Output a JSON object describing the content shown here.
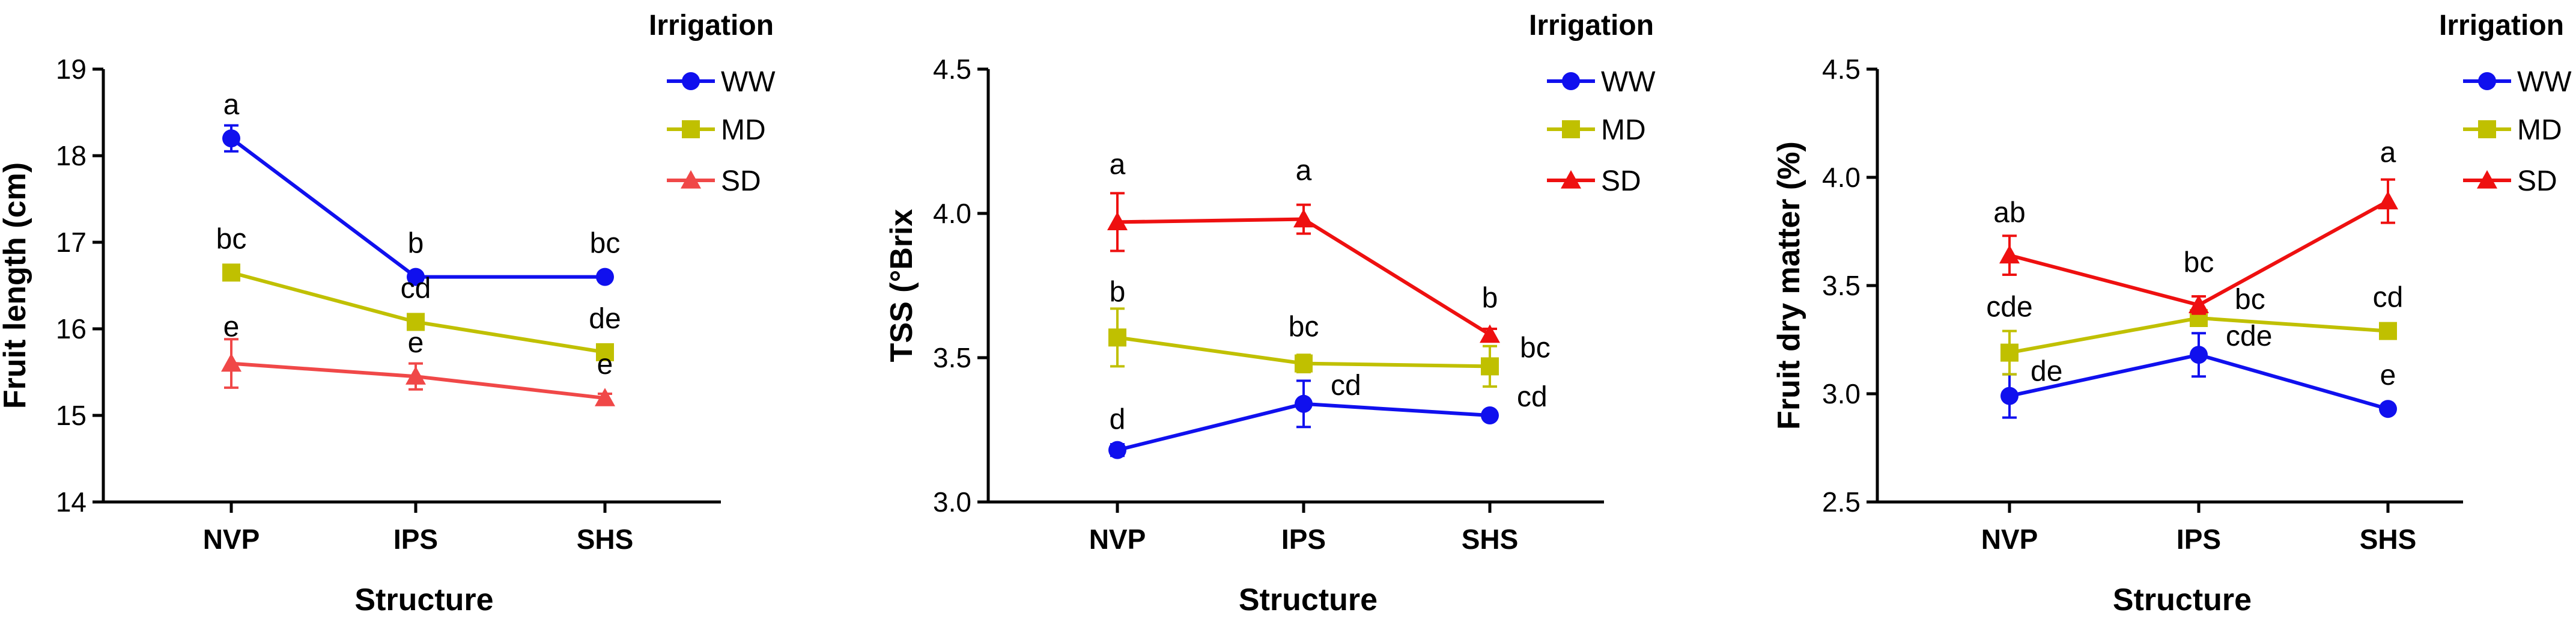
{
  "chart_data": [
    {
      "type": "line",
      "xlabel": "Structure",
      "ylabel": "Fruit length (cm)",
      "categories": [
        "NVP",
        "IPS",
        "SHS"
      ],
      "ylim": [
        14,
        19
      ],
      "yticks": [
        14,
        15,
        16,
        17,
        18,
        19
      ],
      "ytick_labels": [
        "14",
        "15",
        "16",
        "17",
        "18",
        "19"
      ],
      "legend_title": "Irrigation",
      "series": [
        {
          "name": "WW",
          "color": "#1010ee",
          "marker": "circle",
          "values": [
            18.2,
            16.6,
            16.6
          ],
          "errors": [
            0.15,
            0.05,
            0.05
          ],
          "labels": [
            "a",
            "b",
            "bc"
          ]
        },
        {
          "name": "MD",
          "color": "#c0c000",
          "marker": "square",
          "values": [
            16.65,
            16.08,
            15.73
          ],
          "errors": [
            0.05,
            0.05,
            0.05
          ],
          "labels": [
            "bc",
            "cd",
            "de"
          ]
        },
        {
          "name": "SD",
          "color": "#f04848",
          "marker": "triangle",
          "values": [
            15.6,
            15.45,
            15.2
          ],
          "errors": [
            0.28,
            0.15,
            0.05
          ],
          "labels": [
            "e",
            "e",
            "e"
          ]
        }
      ]
    },
    {
      "type": "line",
      "xlabel": "Structure",
      "ylabel": "TSS (°Brix",
      "categories": [
        "NVP",
        "IPS",
        "SHS"
      ],
      "ylim": [
        3.0,
        4.5
      ],
      "yticks": [
        3.0,
        3.5,
        4.0,
        4.5
      ],
      "ytick_labels": [
        "3.0",
        "3.5",
        "4.0",
        "4.5"
      ],
      "legend_title": "Irrigation",
      "series": [
        {
          "name": "WW",
          "color": "#1010ee",
          "marker": "circle",
          "values": [
            3.18,
            3.34,
            3.3
          ],
          "errors": [
            0.02,
            0.08,
            0.01
          ],
          "labels": [
            "d",
            "cd",
            "cd"
          ]
        },
        {
          "name": "MD",
          "color": "#c0c000",
          "marker": "square",
          "values": [
            3.57,
            3.48,
            3.47
          ],
          "errors": [
            0.1,
            0.03,
            0.07
          ],
          "labels": [
            "b",
            "bc",
            "bc"
          ]
        },
        {
          "name": "SD",
          "color": "#ee1010",
          "marker": "triangle",
          "values": [
            3.97,
            3.98,
            3.58
          ],
          "errors": [
            0.1,
            0.05,
            0.02
          ],
          "labels": [
            "a",
            "a",
            "b"
          ]
        }
      ]
    },
    {
      "type": "line",
      "xlabel": "Structure",
      "ylabel": "Fruit dry matter (%)",
      "categories": [
        "NVP",
        "IPS",
        "SHS"
      ],
      "ylim": [
        2.5,
        4.5
      ],
      "yticks": [
        2.5,
        3.0,
        3.5,
        4.0,
        4.5
      ],
      "ytick_labels": [
        "2.5",
        "3.0",
        "3.5",
        "4.0",
        "4.5"
      ],
      "legend_title": "Irrigation",
      "series": [
        {
          "name": "WW",
          "color": "#1010ee",
          "marker": "circle",
          "values": [
            2.99,
            3.18,
            2.93
          ],
          "errors": [
            0.1,
            0.1,
            0.01
          ],
          "labels": [
            "de",
            "cde",
            "e"
          ]
        },
        {
          "name": "MD",
          "color": "#c0c000",
          "marker": "square",
          "values": [
            3.19,
            3.35,
            3.29
          ],
          "errors": [
            0.1,
            0.02,
            0.01
          ],
          "labels": [
            "cde",
            "bc",
            "cd"
          ]
        },
        {
          "name": "SD",
          "color": "#ee1010",
          "marker": "triangle",
          "values": [
            3.64,
            3.41,
            3.89
          ],
          "errors": [
            0.09,
            0.04,
            0.1
          ],
          "labels": [
            "ab",
            "bc",
            "a"
          ]
        }
      ]
    }
  ]
}
